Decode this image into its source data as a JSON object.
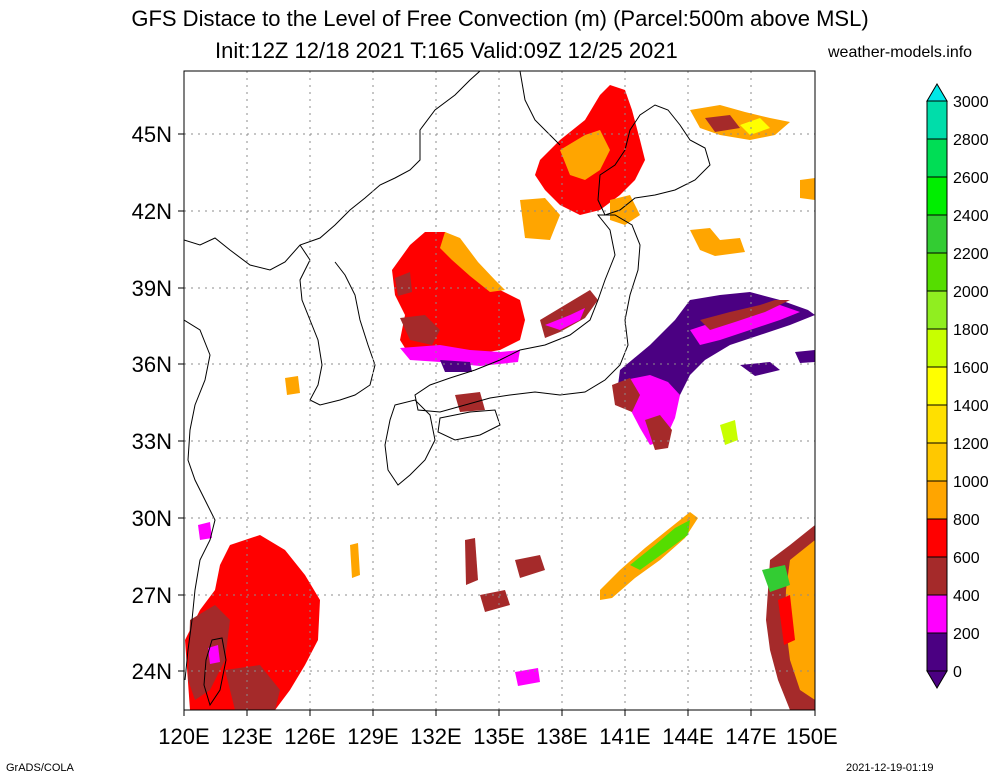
{
  "title": {
    "line1": "GFS Distace to the Level of Free Convection (m) (Parcel:500m above MSL)",
    "line2": "Init:12Z 12/18 2021 T:165 Valid:09Z 12/25 2021",
    "site": "weather-models.info"
  },
  "footer": {
    "left": "GrADS/COLA",
    "right": "2021-12-19-01:19"
  },
  "map": {
    "lon_range": [
      120,
      150
    ],
    "lat_range": [
      22.5,
      47.5
    ],
    "lon_labels": [
      "120E",
      "123E",
      "126E",
      "129E",
      "132E",
      "135E",
      "138E",
      "141E",
      "144E",
      "147E",
      "150E"
    ],
    "lat_labels": [
      "24N",
      "27N",
      "30N",
      "33N",
      "36N",
      "39N",
      "42N",
      "45N"
    ],
    "lon_ticks": [
      120,
      123,
      126,
      129,
      132,
      135,
      138,
      141,
      144,
      147,
      150
    ],
    "lat_ticks": [
      24,
      27,
      30,
      33,
      36,
      39,
      42,
      45
    ],
    "colors": {
      "0-200": "#4b0082",
      "200-400": "#ff00ff",
      "400-600": "#a52a2a",
      "600-800": "#ff0000",
      "800-1000": "#ffa500",
      "1000-1200": "#ffc800",
      "1200-1400": "#ffe000",
      "1400-1600": "#ffff00",
      "1600-1800": "#c8ff00",
      "1800-2000": "#90ee20",
      "2000-2200": "#55dd00",
      "2200-2400": "#33cc33",
      "2400-2600": "#00ee00",
      "2600-2800": "#00dd55",
      "2800-3000": "#00ddaa",
      "3000+": "#00e8e8"
    }
  },
  "colorbar": {
    "labels": [
      "3000",
      "2800",
      "2600",
      "2400",
      "2200",
      "2000",
      "1800",
      "1600",
      "1400",
      "1200",
      "1000",
      "800",
      "600",
      "400",
      "200",
      "0"
    ],
    "colors": [
      "#00ddaa",
      "#00dd55",
      "#00ee00",
      "#33cc33",
      "#55dd00",
      "#90ee20",
      "#c8ff00",
      "#ffff00",
      "#ffe000",
      "#ffc800",
      "#ffa500",
      "#ff0000",
      "#a52a2a",
      "#ff00ff",
      "#4b0082"
    ],
    "top_color": "#00e8e8",
    "bottom_color": "#4b0082"
  }
}
